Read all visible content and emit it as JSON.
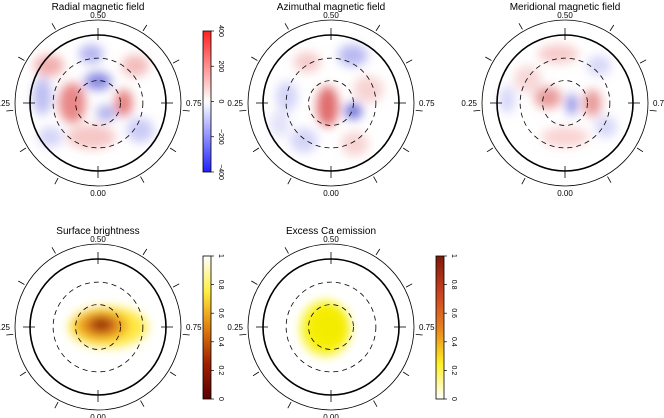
{
  "phase_labels": {
    "top": "0.50",
    "left": "0.25",
    "right": "0.75",
    "bottom": "0.00"
  },
  "panels": [
    {
      "id": "radial",
      "title": "Radial magnetic field",
      "colorbar": {
        "ticks": [
          "400",
          "200",
          "0",
          "−200",
          "−400"
        ],
        "colors": [
          "#ff2020",
          "#ffffff",
          "#2020ff"
        ]
      },
      "blobs": [
        {
          "u": -0.72,
          "v": 0.55,
          "rx": 0.22,
          "ry": 0.16,
          "color": "#e87878",
          "opacity": 0.6
        },
        {
          "u": -0.1,
          "v": 0.72,
          "rx": 0.18,
          "ry": 0.14,
          "color": "#7878e8",
          "opacity": 0.55
        },
        {
          "u": 0.55,
          "v": 0.55,
          "rx": 0.2,
          "ry": 0.16,
          "color": "#e87878",
          "opacity": 0.5
        },
        {
          "u": -0.82,
          "v": 0.1,
          "rx": 0.14,
          "ry": 0.28,
          "color": "#8888e8",
          "opacity": 0.55
        },
        {
          "u": 0.0,
          "v": 0.32,
          "rx": 0.2,
          "ry": 0.13,
          "color": "#6060d8",
          "opacity": 0.75
        },
        {
          "u": -0.38,
          "v": 0.0,
          "rx": 0.2,
          "ry": 0.3,
          "color": "#e06060",
          "opacity": 0.75
        },
        {
          "u": 0.38,
          "v": 0.0,
          "rx": 0.13,
          "ry": 0.2,
          "color": "#e06060",
          "opacity": 0.8
        },
        {
          "u": 0.12,
          "v": -0.15,
          "rx": 0.15,
          "ry": 0.12,
          "color": "#8080e0",
          "opacity": 0.6
        },
        {
          "u": -0.1,
          "v": -0.5,
          "rx": 0.36,
          "ry": 0.18,
          "color": "#f0a0a0",
          "opacity": 0.6
        },
        {
          "u": 0.62,
          "v": -0.4,
          "rx": 0.2,
          "ry": 0.18,
          "color": "#a0a0f0",
          "opacity": 0.55
        },
        {
          "u": -0.7,
          "v": -0.5,
          "rx": 0.18,
          "ry": 0.15,
          "color": "#a0a0f0",
          "opacity": 0.45
        }
      ]
    },
    {
      "id": "azimuthal",
      "title": "Azimuthal magnetic field",
      "blobs": [
        {
          "u": -0.35,
          "v": 0.6,
          "rx": 0.2,
          "ry": 0.15,
          "color": "#f0a0a0",
          "opacity": 0.55
        },
        {
          "u": 0.32,
          "v": 0.7,
          "rx": 0.22,
          "ry": 0.16,
          "color": "#8080e8",
          "opacity": 0.55
        },
        {
          "u": -0.65,
          "v": 0.1,
          "rx": 0.16,
          "ry": 0.22,
          "color": "#a0a0f0",
          "opacity": 0.45
        },
        {
          "u": 0.55,
          "v": 0.2,
          "rx": 0.22,
          "ry": 0.2,
          "color": "#f0a8a8",
          "opacity": 0.5
        },
        {
          "u": -0.05,
          "v": -0.05,
          "rx": 0.16,
          "ry": 0.3,
          "color": "#d84848",
          "opacity": 0.8
        },
        {
          "u": 0.33,
          "v": -0.12,
          "rx": 0.13,
          "ry": 0.12,
          "color": "#5050d0",
          "opacity": 0.8
        },
        {
          "u": -0.4,
          "v": -0.55,
          "rx": 0.2,
          "ry": 0.18,
          "color": "#a8a8f0",
          "opacity": 0.5
        },
        {
          "u": 0.35,
          "v": -0.6,
          "rx": 0.2,
          "ry": 0.18,
          "color": "#f0a8a8",
          "opacity": 0.5
        },
        {
          "u": -0.75,
          "v": -0.3,
          "rx": 0.15,
          "ry": 0.2,
          "color": "#c0c0f4",
          "opacity": 0.45
        }
      ]
    },
    {
      "id": "meridional",
      "title": "Meridional magnetic field",
      "blobs": [
        {
          "u": -0.1,
          "v": 0.72,
          "rx": 0.3,
          "ry": 0.14,
          "color": "#f0a0a0",
          "opacity": 0.55
        },
        {
          "u": 0.5,
          "v": 0.55,
          "rx": 0.18,
          "ry": 0.15,
          "color": "#a8a8f0",
          "opacity": 0.45
        },
        {
          "u": -0.55,
          "v": 0.35,
          "rx": 0.2,
          "ry": 0.2,
          "color": "#f0b0b0",
          "opacity": 0.5
        },
        {
          "u": -0.85,
          "v": 0.05,
          "rx": 0.12,
          "ry": 0.2,
          "color": "#a8a8f0",
          "opacity": 0.45
        },
        {
          "u": -0.25,
          "v": 0.08,
          "rx": 0.2,
          "ry": 0.16,
          "color": "#e07070",
          "opacity": 0.7
        },
        {
          "u": 0.1,
          "v": -0.02,
          "rx": 0.08,
          "ry": 0.16,
          "color": "#6868d8",
          "opacity": 0.75
        },
        {
          "u": 0.4,
          "v": 0.0,
          "rx": 0.14,
          "ry": 0.2,
          "color": "#e07070",
          "opacity": 0.7
        },
        {
          "u": 0.0,
          "v": -0.5,
          "rx": 0.35,
          "ry": 0.15,
          "color": "#f4b0b0",
          "opacity": 0.55
        },
        {
          "u": 0.6,
          "v": -0.35,
          "rx": 0.16,
          "ry": 0.16,
          "color": "#a8a8f0",
          "opacity": 0.45
        }
      ]
    },
    {
      "id": "brightness",
      "title": "Surface brightness",
      "colorbar": {
        "ticks": [
          "1",
          "0.8",
          "0.6",
          "0.4",
          "0.2",
          "0"
        ],
        "colors": [
          "#ffffff",
          "#ffee40",
          "#e08010",
          "#a02000",
          "#5a0000"
        ]
      },
      "blobs": [
        {
          "u": 0.15,
          "v": 0.0,
          "rx": 0.58,
          "ry": 0.3,
          "color": "#ffe830",
          "opacity": 0.9
        },
        {
          "u": 0.05,
          "v": 0.02,
          "rx": 0.4,
          "ry": 0.22,
          "color": "#f0a020",
          "opacity": 0.85
        },
        {
          "u": 0.05,
          "v": 0.03,
          "rx": 0.24,
          "ry": 0.15,
          "color": "#c05010",
          "opacity": 0.85
        },
        {
          "u": 0.05,
          "v": 0.04,
          "rx": 0.11,
          "ry": 0.08,
          "color": "#802000",
          "opacity": 0.9
        }
      ]
    },
    {
      "id": "calcium",
      "title": "Excess Ca emission",
      "colorbar": {
        "ticks": [
          "1",
          "0.8",
          "0.6",
          "0.4",
          "0.2",
          "0"
        ],
        "colors": [
          "#801808",
          "#c84020",
          "#e88020",
          "#fff020",
          "#ffffff"
        ]
      },
      "blobs": [
        {
          "u": -0.08,
          "v": -0.02,
          "rx": 0.36,
          "ry": 0.4,
          "color": "#f8f010",
          "opacity": 1
        },
        {
          "u": -0.02,
          "v": 0.02,
          "rx": 0.25,
          "ry": 0.28,
          "color": "#f4ec00",
          "opacity": 1
        }
      ]
    }
  ]
}
